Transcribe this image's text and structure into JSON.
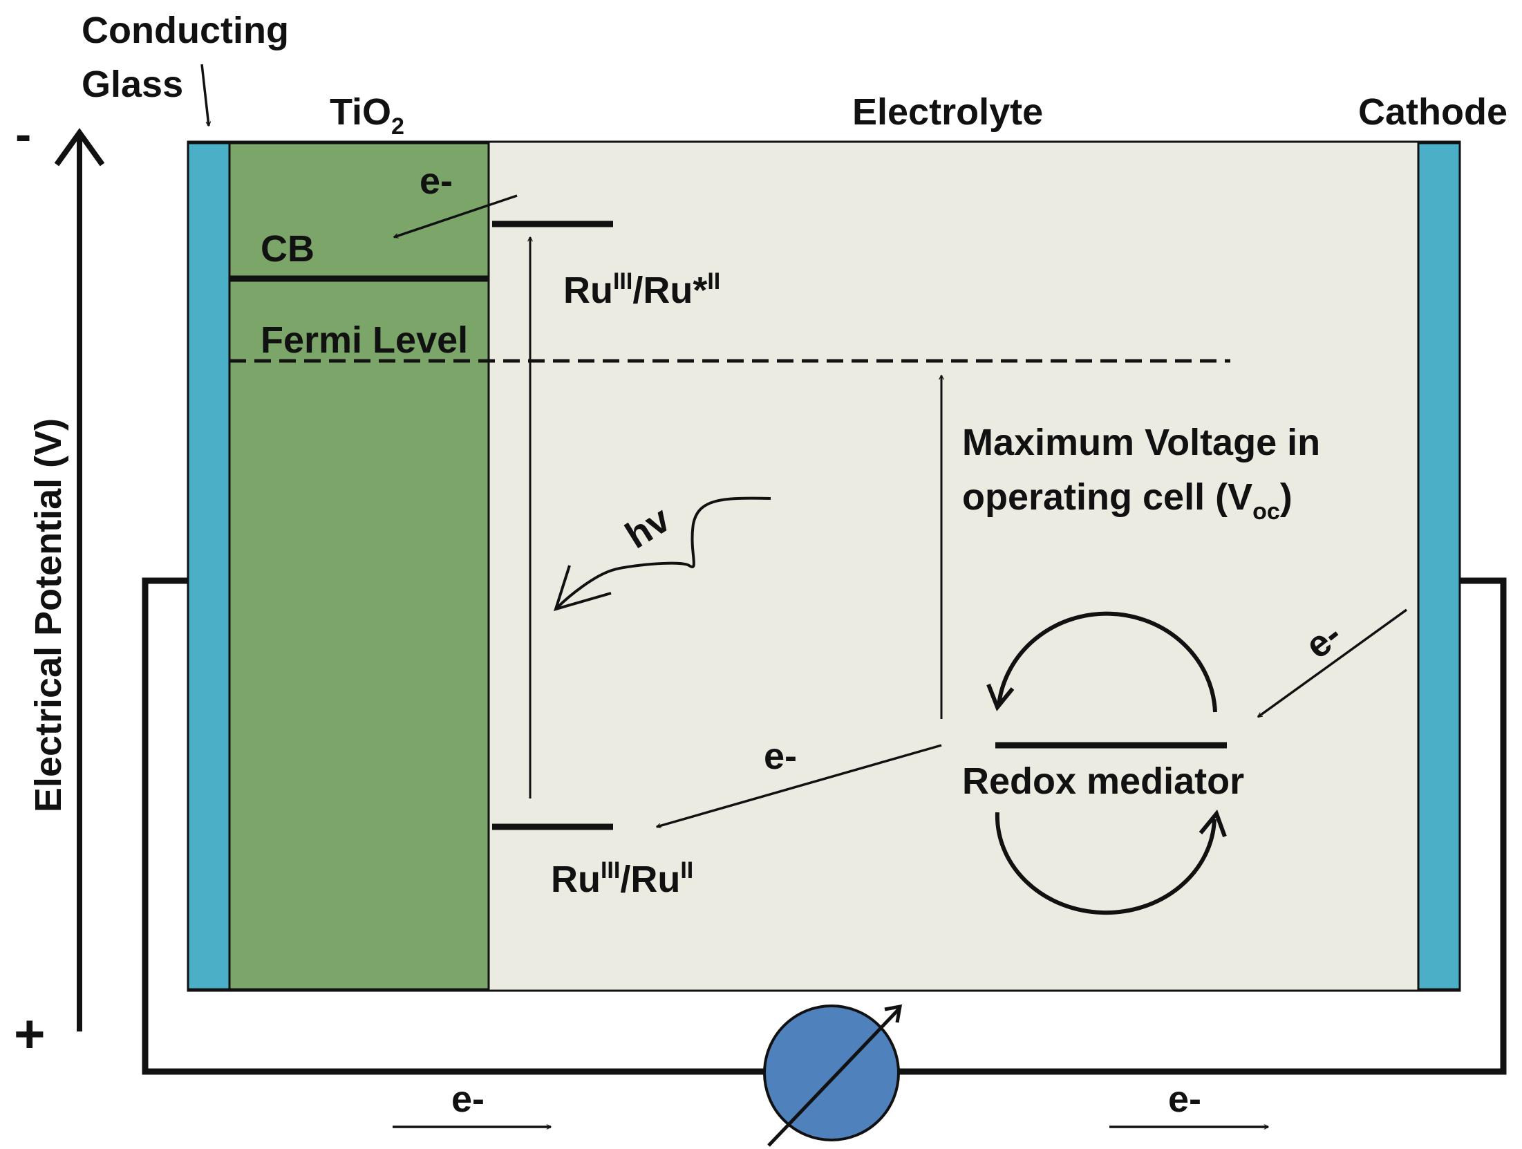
{
  "colors": {
    "electrolyte": "#ecebe1",
    "tio2": "#7ba569",
    "conducting_glass": "#4bafc8",
    "lamp": "#4f81bd",
    "line": "#111111"
  },
  "labels": {
    "conducting_glass_line1": "Conducting",
    "conducting_glass_line2": "Glass",
    "tio2_base": "TiO",
    "tio2_sub": "2",
    "electrolyte": "Electrolyte",
    "cathode": "Cathode",
    "potential_axis": "Electrical Potential (V)",
    "minus": "-",
    "plus": "+",
    "cb": "CB",
    "fermi_level": "Fermi Level",
    "hv": "hv",
    "ru_excited_base1": "Ru",
    "ru_excited_sup1": "III",
    "ru_excited_mid": "/Ru*",
    "ru_excited_sup2": "II",
    "ru_ground_base1": "Ru",
    "ru_ground_sup1": "III",
    "ru_ground_mid": "/Ru",
    "ru_ground_sup2": "II",
    "voc_line1": "Maximum Voltage in",
    "voc_line2_a": "operating cell (V",
    "voc_line2_sub": "oc",
    "voc_line2_b": ")",
    "redox_mediator": "Redox mediator",
    "electron": "e-"
  }
}
